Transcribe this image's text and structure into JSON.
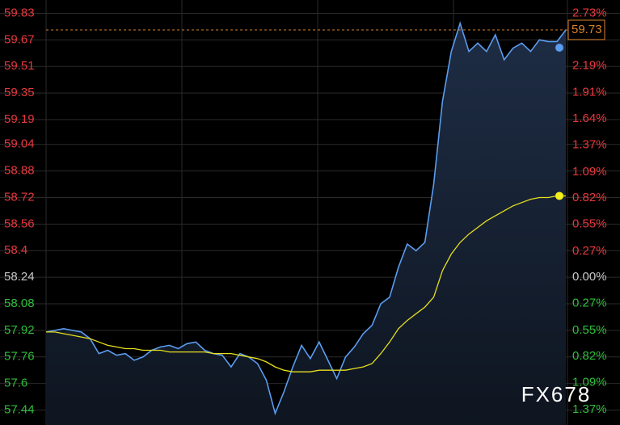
{
  "chart_data": {
    "type": "line",
    "watermark": "FX678",
    "grid": true,
    "area": true,
    "up_color": "#e8383d",
    "down_color": "#2fbf3a",
    "flat_color": "#c8c8c8",
    "ylim": [
      57.35,
      59.91
    ],
    "yticks": [
      59.83,
      59.67,
      59.51,
      59.35,
      59.19,
      59.04,
      58.88,
      58.72,
      58.56,
      58.4,
      58.24,
      58.08,
      57.92,
      57.76,
      57.6,
      57.44
    ],
    "y2lim": [
      -1.53,
      2.87
    ],
    "y2ticks": [
      {
        "value": 2.73,
        "label": "2.73%"
      },
      {
        "value": 2.19,
        "label": "2.19%"
      },
      {
        "value": 1.91,
        "label": "1.91%"
      },
      {
        "value": 1.64,
        "label": "1.64%"
      },
      {
        "value": 1.37,
        "label": "1.37%"
      },
      {
        "value": 1.09,
        "label": "1.09%"
      },
      {
        "value": 0.82,
        "label": "0.82%"
      },
      {
        "value": 0.55,
        "label": "0.55%"
      },
      {
        "value": 0.27,
        "label": "0.27%"
      },
      {
        "value": 0.0,
        "label": "0.00%"
      },
      {
        "value": -0.27,
        "label": "0.27%"
      },
      {
        "value": -0.55,
        "label": "0.55%"
      },
      {
        "value": -0.82,
        "label": "0.82%"
      },
      {
        "value": -1.09,
        "label": "1.09%"
      },
      {
        "value": -1.37,
        "label": "1.37%"
      }
    ],
    "series": [
      {
        "color": "#5b9cf0",
        "marker_color": "#5b9cf0",
        "price_label_color": "#d9822b",
        "values": [
          57.91,
          57.92,
          57.93,
          57.92,
          57.91,
          57.87,
          57.78,
          57.8,
          57.77,
          57.78,
          57.74,
          57.76,
          57.8,
          57.82,
          57.83,
          57.81,
          57.84,
          57.85,
          57.8,
          57.78,
          57.77,
          57.7,
          57.78,
          57.76,
          57.72,
          57.62,
          57.42,
          57.55,
          57.7,
          57.83,
          57.75,
          57.85,
          57.74,
          57.63,
          57.76,
          57.82,
          57.9,
          57.95,
          58.08,
          58.12,
          58.3,
          58.44,
          58.4,
          58.45,
          58.8,
          59.3,
          59.6,
          59.77,
          59.6,
          59.65,
          59.6,
          59.7,
          59.55,
          59.62,
          59.65,
          59.6,
          59.67,
          59.66,
          59.66,
          59.73
        ]
      },
      {
        "color": "#e6df1e",
        "marker_color": "#f5ef1a",
        "values": [
          57.91,
          57.91,
          57.9,
          57.89,
          57.88,
          57.87,
          57.85,
          57.83,
          57.82,
          57.81,
          57.81,
          57.8,
          57.8,
          57.8,
          57.79,
          57.79,
          57.79,
          57.79,
          57.79,
          57.78,
          57.78,
          57.78,
          57.77,
          57.76,
          57.75,
          57.73,
          57.7,
          57.68,
          57.67,
          57.67,
          57.67,
          57.68,
          57.68,
          57.68,
          57.68,
          57.69,
          57.7,
          57.72,
          57.78,
          57.85,
          57.93,
          57.98,
          58.02,
          58.06,
          58.12,
          58.28,
          58.38,
          58.45,
          58.5,
          58.54,
          58.58,
          58.61,
          58.64,
          58.67,
          58.69,
          58.71,
          58.72,
          58.72,
          58.73,
          58.73
        ]
      }
    ]
  }
}
